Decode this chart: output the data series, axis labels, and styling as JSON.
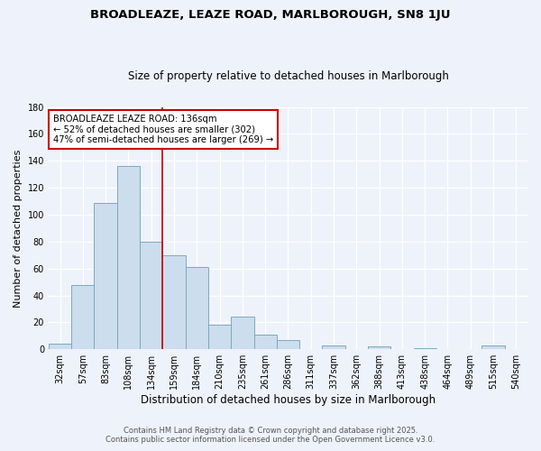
{
  "title": "BROADLEAZE, LEAZE ROAD, MARLBOROUGH, SN8 1JU",
  "subtitle": "Size of property relative to detached houses in Marlborough",
  "xlabel": "Distribution of detached houses by size in Marlborough",
  "ylabel": "Number of detached properties",
  "bar_color": "#ccdded",
  "bar_edge_color": "#7aaabf",
  "background_color": "#eef2fa",
  "grid_color": "#ffffff",
  "annotation_box_color": "#ffffff",
  "annotation_line_color": "#cc0000",
  "bin_labels": [
    "32sqm",
    "57sqm",
    "83sqm",
    "108sqm",
    "134sqm",
    "159sqm",
    "184sqm",
    "210sqm",
    "235sqm",
    "261sqm",
    "286sqm",
    "311sqm",
    "337sqm",
    "362sqm",
    "388sqm",
    "413sqm",
    "438sqm",
    "464sqm",
    "489sqm",
    "515sqm",
    "540sqm"
  ],
  "bar_values": [
    4,
    48,
    109,
    136,
    80,
    70,
    61,
    18,
    24,
    11,
    7,
    0,
    3,
    0,
    2,
    0,
    1,
    0,
    0,
    3,
    0
  ],
  "property_line_index": 4,
  "annotation_title": "BROADLEAZE LEAZE ROAD: 136sqm",
  "annotation_line1": "← 52% of detached houses are smaller (302)",
  "annotation_line2": "47% of semi-detached houses are larger (269) →",
  "ylim": [
    0,
    180
  ],
  "yticks": [
    0,
    20,
    40,
    60,
    80,
    100,
    120,
    140,
    160,
    180
  ],
  "footer1": "Contains HM Land Registry data © Crown copyright and database right 2025.",
  "footer2": "Contains public sector information licensed under the Open Government Licence v3.0."
}
